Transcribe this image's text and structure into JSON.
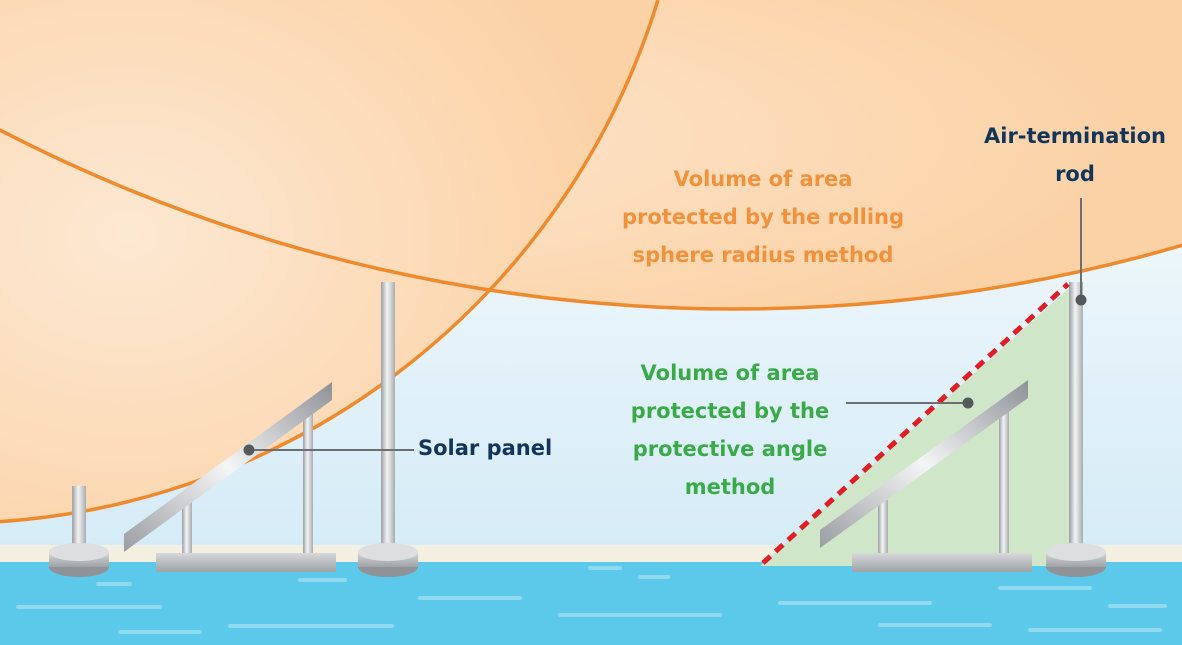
{
  "labels": {
    "rolling_sphere": [
      "Volume of area",
      "protected by the rolling",
      "sphere radius method"
    ],
    "protective_angle": [
      "Volume of area",
      "protected by the",
      "protective angle",
      "method"
    ],
    "air_termination_rod": [
      "Air-termination",
      "rod"
    ],
    "solar_panel": [
      "Solar panel"
    ]
  },
  "colors": {
    "rolling_sphere_text": "#f0913c",
    "protective_angle_text": "#3aaa49",
    "dark_text": "#13355a",
    "sphere_fill": "#fcd9b3",
    "sphere_edge": "#ee8a2c",
    "sky": "#d6ecf6",
    "water": "#5cc8ea",
    "ground": "#f4f1e3",
    "cone_fill": "#cfe6c9",
    "angle_line": "#e01c24"
  }
}
